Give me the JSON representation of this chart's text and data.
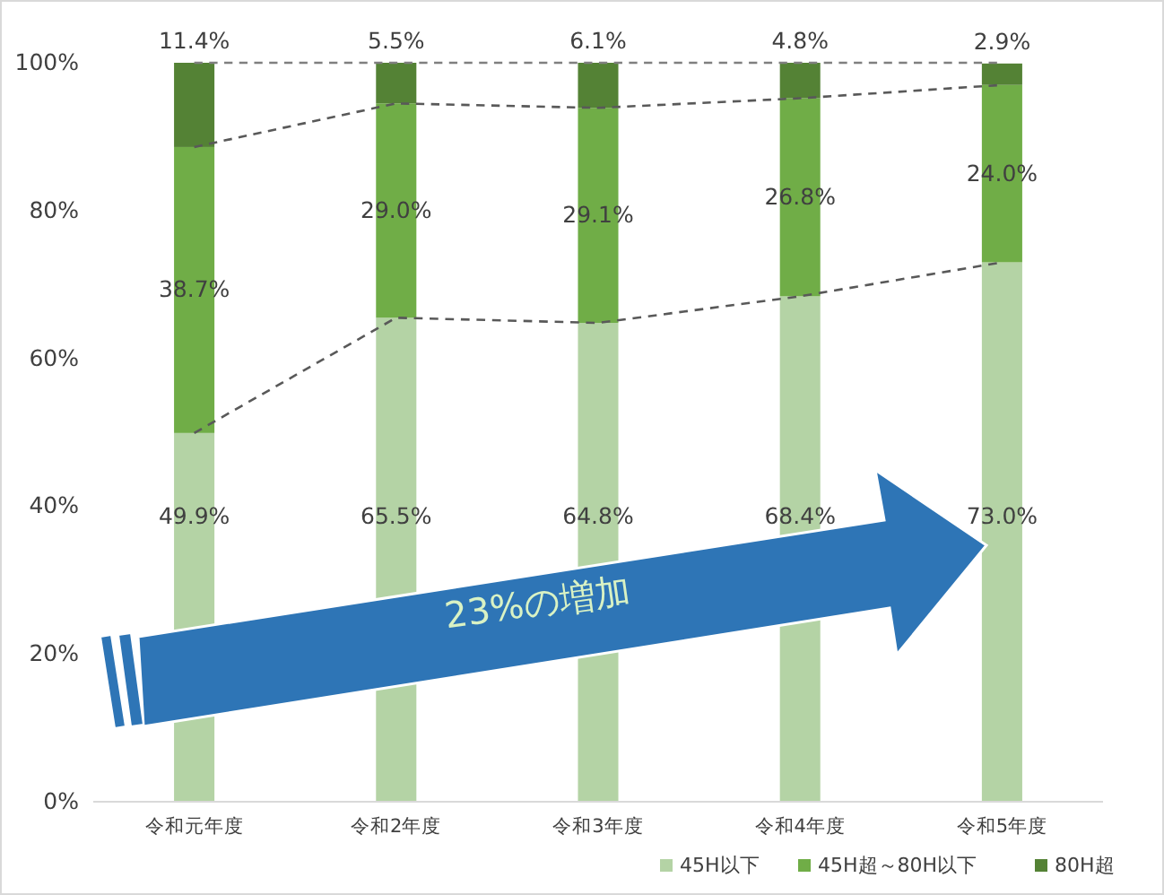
{
  "chart_data": {
    "type": "bar",
    "stacked": true,
    "categories": [
      "令和元年度",
      "令和2年度",
      "令和3年度",
      "令和4年度",
      "令和5年度"
    ],
    "series": [
      {
        "name": "45H以下",
        "color": "#b4d3a5",
        "values": [
          49.9,
          65.5,
          64.8,
          68.4,
          73.0
        ],
        "value_labels": [
          "49.9%",
          "65.5%",
          "64.8%",
          "68.4%",
          "73.0%"
        ]
      },
      {
        "name": "45H超～80H以下",
        "color": "#70ad47",
        "values": [
          38.7,
          29.0,
          29.1,
          26.8,
          24.0
        ],
        "value_labels": [
          "38.7%",
          "29.0%",
          "29.1%",
          "26.8%",
          "24.0%"
        ]
      },
      {
        "name": "80H超",
        "color": "#548235",
        "values": [
          11.4,
          5.5,
          6.1,
          4.8,
          2.9
        ],
        "value_labels": [
          "11.4%",
          "5.5%",
          "6.1%",
          "4.8%",
          "2.9%"
        ]
      },
      {
        "type": "line",
        "color": "#595959",
        "line_style": "dashed",
        "values": [
          49.9,
          65.5,
          64.8,
          68.4,
          73.0
        ]
      },
      {
        "type": "line",
        "color": "#595959",
        "line_style": "dashed",
        "values": [
          88.6,
          94.5,
          93.9,
          95.2,
          97.0
        ]
      },
      {
        "type": "line",
        "color": "#7f7f7f",
        "line_style": "dashed",
        "values": [
          100,
          100,
          100,
          100,
          100
        ]
      }
    ],
    "ylim": [
      0,
      100
    ],
    "yticks": [
      {
        "value": 0,
        "label": "0%"
      },
      {
        "value": 20,
        "label": "20%"
      },
      {
        "value": 40,
        "label": "40%"
      },
      {
        "value": 60,
        "label": "60%"
      },
      {
        "value": 80,
        "label": "80%"
      },
      {
        "value": 100,
        "label": "100%"
      }
    ],
    "grid": false,
    "legend": "bottom right",
    "annotations": [
      "23%の増加"
    ]
  }
}
